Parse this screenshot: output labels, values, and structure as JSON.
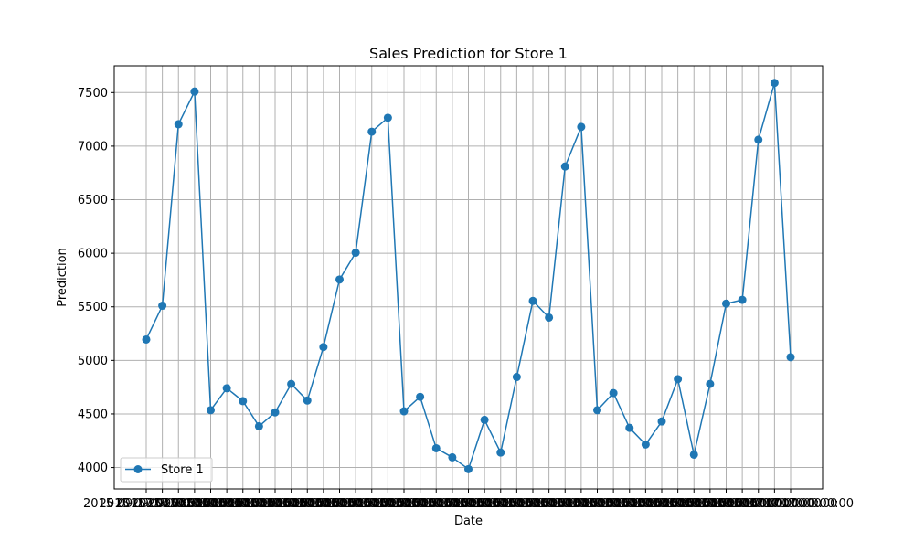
{
  "chart_data": {
    "type": "line",
    "title": "Sales Prediction for Store 1",
    "xlabel": "Date",
    "ylabel": "Prediction",
    "ylim": [
      3800,
      7750
    ],
    "y_ticks": [
      4000,
      4500,
      5000,
      5500,
      6000,
      6500,
      7000,
      7500
    ],
    "y_tick_labels": [
      "4000",
      "4500",
      "5000",
      "5500",
      "6000",
      "6500",
      "7000",
      "7500"
    ],
    "x_tick_text": "2015-09-17 00:00:00",
    "grid": true,
    "legend_position": "lower-left",
    "series": [
      {
        "name": "Store 1",
        "color": "#1f77b4",
        "marker": "circle",
        "values": [
          5195,
          5510,
          7205,
          7510,
          4535,
          4740,
          4620,
          4385,
          4515,
          4780,
          4625,
          5125,
          5755,
          6005,
          7135,
          7265,
          4525,
          4660,
          4180,
          4095,
          3985,
          4445,
          4140,
          4845,
          5555,
          5400,
          6810,
          7180,
          4535,
          4695,
          4370,
          4215,
          4430,
          4825,
          4120,
          4780,
          5530,
          5565,
          7060,
          7590,
          5030
        ]
      }
    ]
  }
}
